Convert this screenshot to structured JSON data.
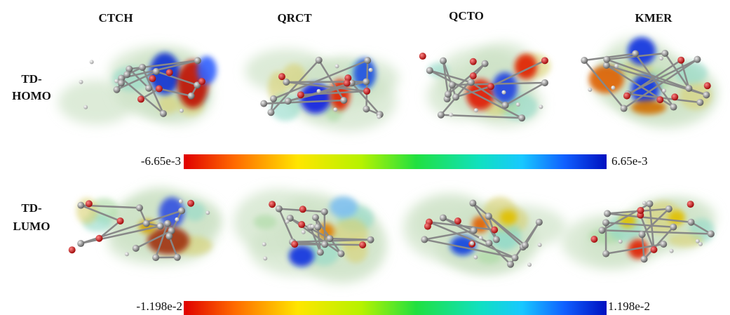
{
  "columns": [
    "CTCH",
    "QRCT",
    "QCTO",
    "KMER"
  ],
  "rows": [
    {
      "lines": [
        "TD-",
        "HOMO"
      ]
    },
    {
      "lines": [
        "TD-",
        "LUMO"
      ]
    }
  ],
  "colorbars": [
    {
      "min": "-6.65e-3",
      "max": "6.65e-3"
    },
    {
      "min": "-1.198e-2",
      "max": "1.198e-2"
    }
  ]
}
